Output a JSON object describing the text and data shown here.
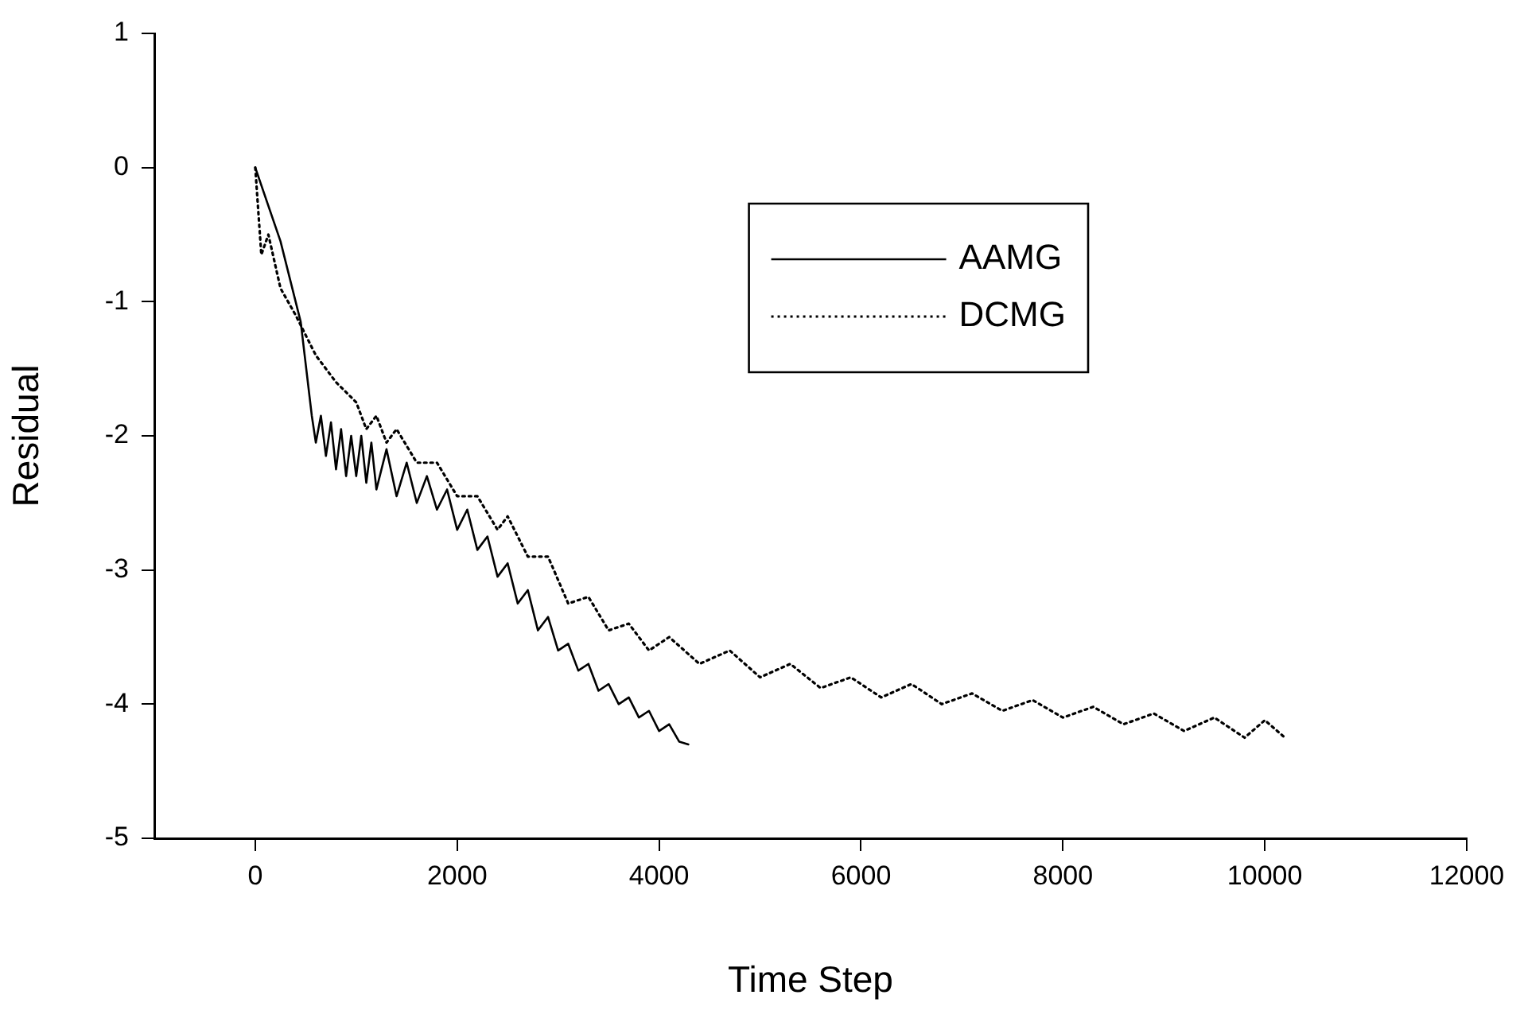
{
  "chart_data": {
    "type": "line",
    "xlabel": "Time Step",
    "ylabel": "Residual",
    "xlim": [
      -1000,
      12000
    ],
    "xticks": [
      0,
      2000,
      4000,
      6000,
      8000,
      10000,
      12000
    ],
    "ylim": [
      -5,
      1
    ],
    "yticks": [
      -5,
      -4,
      -3,
      -2,
      -1,
      0,
      1
    ],
    "grid": false,
    "legend": "top right",
    "marker": "none",
    "series": [
      {
        "name": "AAMG",
        "color": "#000000",
        "line_style": "solid",
        "x": [
          0,
          250,
          450,
          560,
          600,
          650,
          700,
          750,
          800,
          850,
          900,
          950,
          1000,
          1050,
          1100,
          1150,
          1200,
          1300,
          1400,
          1500,
          1600,
          1700,
          1800,
          1900,
          2000,
          2100,
          2200,
          2300,
          2400,
          2500,
          2600,
          2700,
          2800,
          2900,
          3000,
          3100,
          3200,
          3300,
          3400,
          3500,
          3600,
          3700,
          3800,
          3900,
          4000,
          4100,
          4200,
          4290
        ],
        "values": [
          0,
          -0.55,
          -1.15,
          -1.85,
          -2.05,
          -1.85,
          -2.15,
          -1.9,
          -2.25,
          -1.95,
          -2.3,
          -2.0,
          -2.3,
          -2.0,
          -2.35,
          -2.05,
          -2.4,
          -2.1,
          -2.45,
          -2.2,
          -2.5,
          -2.3,
          -2.55,
          -2.4,
          -2.7,
          -2.55,
          -2.85,
          -2.75,
          -3.05,
          -2.95,
          -3.25,
          -3.15,
          -3.45,
          -3.35,
          -3.6,
          -3.55,
          -3.75,
          -3.7,
          -3.9,
          -3.85,
          -4.0,
          -3.95,
          -4.1,
          -4.05,
          -4.2,
          -4.15,
          -4.28,
          -4.3
        ]
      },
      {
        "name": "DCMG",
        "color": "#000000",
        "line_style": "dotted",
        "x": [
          0,
          60,
          130,
          250,
          400,
          600,
          800,
          1000,
          1100,
          1200,
          1300,
          1400,
          1600,
          1800,
          2000,
          2200,
          2400,
          2500,
          2700,
          2900,
          3100,
          3300,
          3500,
          3700,
          3900,
          4100,
          4400,
          4700,
          5000,
          5300,
          5600,
          5900,
          6200,
          6500,
          6800,
          7100,
          7400,
          7700,
          8000,
          8300,
          8600,
          8900,
          9200,
          9500,
          9800,
          10000,
          10200
        ],
        "values": [
          0,
          -0.65,
          -0.5,
          -0.9,
          -1.1,
          -1.4,
          -1.6,
          -1.75,
          -1.95,
          -1.85,
          -2.05,
          -1.95,
          -2.2,
          -2.2,
          -2.45,
          -2.45,
          -2.7,
          -2.6,
          -2.9,
          -2.9,
          -3.25,
          -3.2,
          -3.45,
          -3.4,
          -3.6,
          -3.5,
          -3.7,
          -3.6,
          -3.8,
          -3.7,
          -3.88,
          -3.8,
          -3.95,
          -3.85,
          -4.0,
          -3.92,
          -4.05,
          -3.97,
          -4.1,
          -4.02,
          -4.15,
          -4.07,
          -4.2,
          -4.1,
          -4.25,
          -4.12,
          -4.25
        ]
      }
    ]
  }
}
